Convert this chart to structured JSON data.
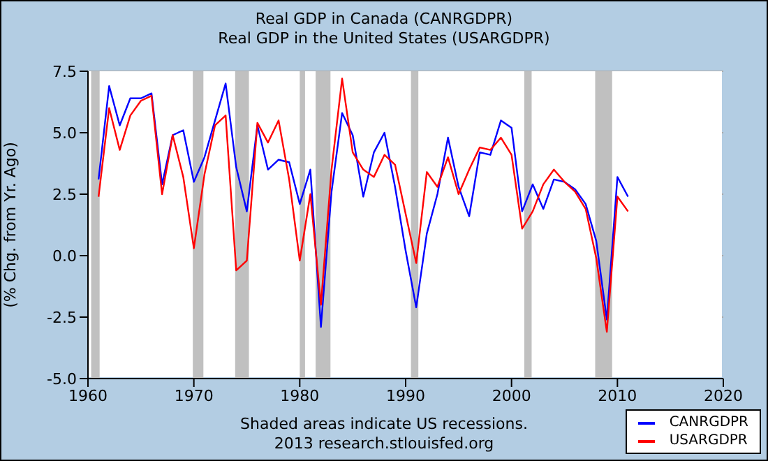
{
  "chart_data": {
    "type": "line",
    "title": "Real GDP in Canada (CANRGDPR)",
    "subtitle": "Real GDP in the United States (USARGDPR)",
    "ylabel": "(% Chg. from Yr. Ago)",
    "annotations": [
      "Shaded areas indicate US recessions.",
      "2013 research.stlouisfed.org"
    ],
    "x": [
      1961,
      1962,
      1963,
      1964,
      1965,
      1966,
      1967,
      1968,
      1969,
      1970,
      1971,
      1972,
      1973,
      1974,
      1975,
      1976,
      1977,
      1978,
      1979,
      1980,
      1981,
      1982,
      1983,
      1984,
      1985,
      1986,
      1987,
      1988,
      1989,
      1990,
      1991,
      1992,
      1993,
      1994,
      1995,
      1996,
      1997,
      1998,
      1999,
      2000,
      2001,
      2002,
      2003,
      2004,
      2005,
      2006,
      2007,
      2008,
      2009,
      2010,
      2011
    ],
    "series": [
      {
        "name": "CANRGDPR",
        "color": "#0000ff",
        "values": [
          3.1,
          6.9,
          5.3,
          6.4,
          6.4,
          6.6,
          2.9,
          4.9,
          5.1,
          3.0,
          4.0,
          5.5,
          7.0,
          3.6,
          1.8,
          5.3,
          3.5,
          3.9,
          3.8,
          2.1,
          3.5,
          -2.9,
          2.6,
          5.8,
          4.9,
          2.4,
          4.2,
          5.0,
          2.8,
          0.2,
          -2.1,
          0.9,
          2.5,
          4.8,
          2.8,
          1.6,
          4.2,
          4.1,
          5.5,
          5.2,
          1.8,
          2.9,
          1.9,
          3.1,
          3.0,
          2.7,
          2.1,
          0.6,
          -2.6,
          3.2,
          2.4
        ]
      },
      {
        "name": "USARGDPR",
        "color": "#ff0000",
        "values": [
          2.4,
          6.0,
          4.3,
          5.7,
          6.3,
          6.5,
          2.5,
          4.9,
          3.2,
          0.3,
          3.3,
          5.3,
          5.7,
          -0.6,
          -0.2,
          5.4,
          4.6,
          5.5,
          3.1,
          -0.2,
          2.5,
          -2.0,
          3.5,
          7.2,
          4.2,
          3.5,
          3.2,
          4.1,
          3.7,
          1.7,
          -0.3,
          3.4,
          2.8,
          4.0,
          2.5,
          3.5,
          4.4,
          4.3,
          4.8,
          4.1,
          1.1,
          1.8,
          2.9,
          3.5,
          3.0,
          2.6,
          1.9,
          -0.1,
          -3.1,
          2.4,
          1.8
        ]
      }
    ],
    "xlim": [
      1960,
      2020
    ],
    "xticks": [
      1960,
      1970,
      1980,
      1990,
      2000,
      2010,
      2020
    ],
    "ylim": [
      -5,
      7.5
    ],
    "yticks": [
      {
        "value": -5,
        "label": "-5.0"
      },
      {
        "value": -2.5,
        "label": "-2.5"
      },
      {
        "value": 0,
        "label": "0.0"
      },
      {
        "value": 2.5,
        "label": "2.5"
      },
      {
        "value": 5,
        "label": "5.0"
      },
      {
        "value": 7.5,
        "label": "7.5"
      }
    ],
    "bands": [
      {
        "axis": "x",
        "from": 1960.3,
        "to": 1961.1,
        "color": "#c0c0c0"
      },
      {
        "axis": "x",
        "from": 1969.9,
        "to": 1970.9,
        "color": "#c0c0c0"
      },
      {
        "axis": "x",
        "from": 1973.9,
        "to": 1975.2,
        "color": "#c0c0c0"
      },
      {
        "axis": "x",
        "from": 1980.0,
        "to": 1980.5,
        "color": "#c0c0c0"
      },
      {
        "axis": "x",
        "from": 1981.5,
        "to": 1982.9,
        "color": "#c0c0c0"
      },
      {
        "axis": "x",
        "from": 1990.5,
        "to": 1991.2,
        "color": "#c0c0c0"
      },
      {
        "axis": "x",
        "from": 2001.2,
        "to": 2001.9,
        "color": "#c0c0c0"
      },
      {
        "axis": "x",
        "from": 2007.9,
        "to": 2009.5,
        "color": "#c0c0c0"
      }
    ],
    "grid": "y",
    "legend": "bottom right",
    "marker": "none",
    "line_style": "solid"
  }
}
